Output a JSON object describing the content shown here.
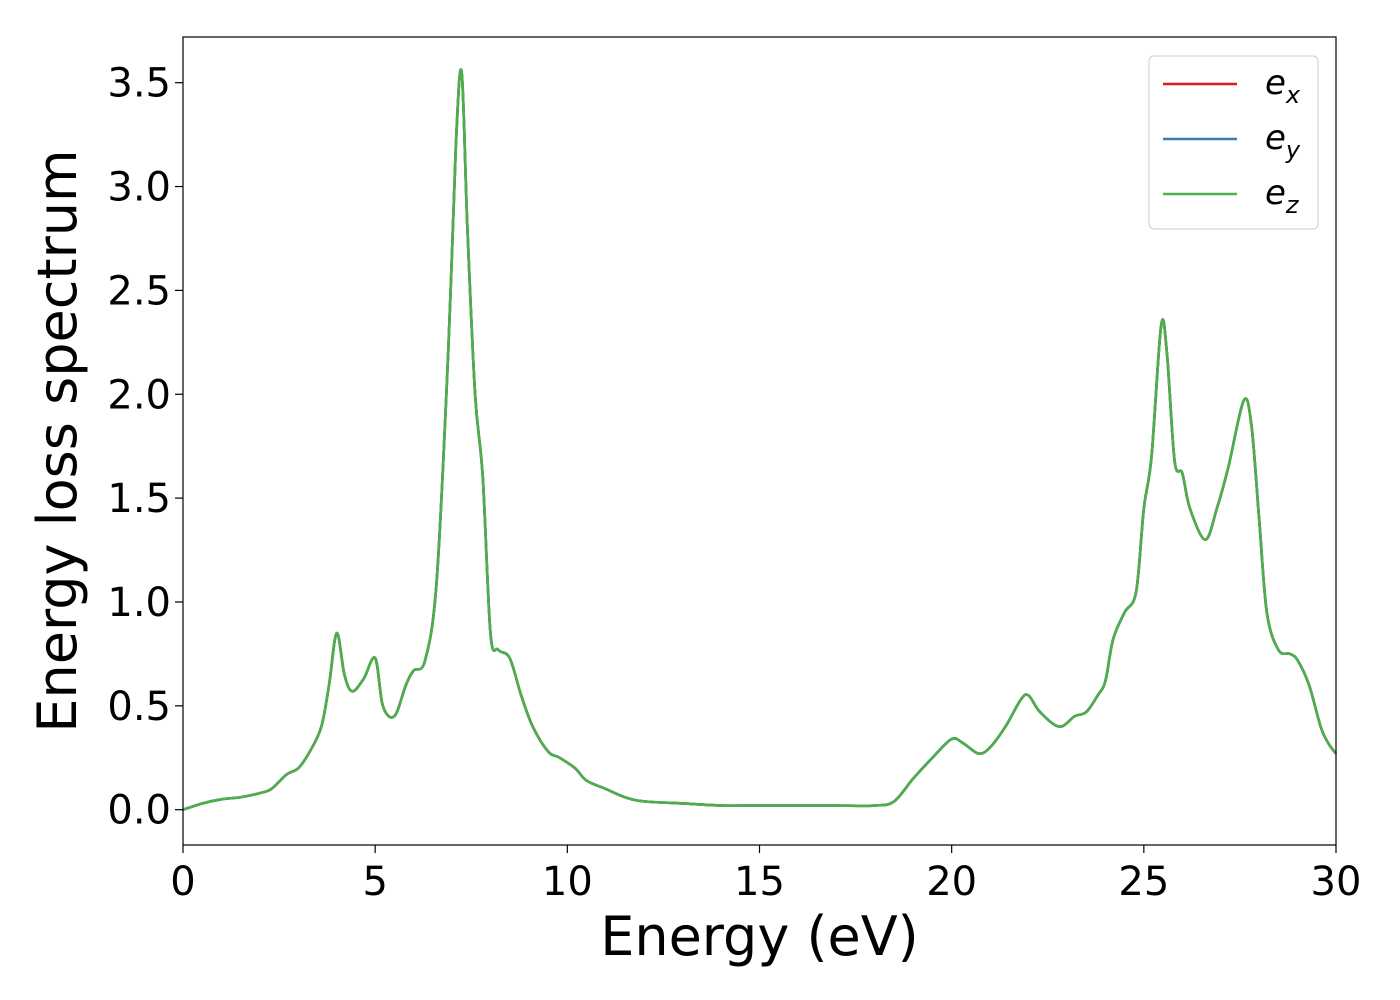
{
  "chart_data": {
    "type": "line",
    "xlabel": "Energy (eV)",
    "ylabel": "Energy loss spectrum",
    "xlim": [
      0,
      30
    ],
    "ylim": [
      -0.17,
      3.72
    ],
    "x_ticks": [
      0,
      5,
      10,
      15,
      20,
      25,
      30
    ],
    "x_tick_labels": [
      "0",
      "5",
      "10",
      "15",
      "20",
      "25",
      "30"
    ],
    "y_ticks": [
      0.0,
      0.5,
      1.0,
      1.5,
      2.0,
      2.5,
      3.0,
      3.5
    ],
    "y_tick_labels": [
      "0.0",
      "0.5",
      "1.0",
      "1.5",
      "2.0",
      "2.5",
      "3.0",
      "3.5"
    ],
    "grid": false,
    "legend_position": "top-right",
    "x": [
      0,
      0.5,
      1.0,
      1.5,
      2.0,
      2.3,
      2.7,
      3.0,
      3.3,
      3.6,
      3.8,
      4.0,
      4.2,
      4.4,
      4.7,
      5.0,
      5.2,
      5.5,
      5.8,
      6.0,
      6.3,
      6.6,
      6.9,
      7.1,
      7.25,
      7.4,
      7.6,
      7.8,
      8.0,
      8.2,
      8.5,
      8.8,
      9.1,
      9.5,
      9.8,
      10.2,
      10.5,
      11.0,
      11.5,
      12.0,
      13.0,
      14.0,
      15.0,
      16.0,
      17.0,
      18.0,
      18.5,
      19.0,
      19.5,
      20.0,
      20.3,
      20.7,
      21.0,
      21.4,
      21.8,
      22.0,
      22.3,
      22.8,
      23.2,
      23.5,
      23.8,
      24.0,
      24.2,
      24.5,
      24.8,
      25.0,
      25.2,
      25.45,
      25.6,
      25.8,
      26.0,
      26.2,
      26.6,
      26.9,
      27.2,
      27.6,
      27.8,
      28.0,
      28.2,
      28.5,
      28.8,
      29.0,
      29.3,
      29.6,
      29.8,
      30.0
    ],
    "series": [
      {
        "name": "e_x",
        "label_base": "e",
        "label_sub": "x",
        "color": "#e41a1c",
        "values": [
          0.0,
          0.03,
          0.05,
          0.06,
          0.08,
          0.1,
          0.17,
          0.2,
          0.28,
          0.4,
          0.6,
          0.85,
          0.65,
          0.57,
          0.63,
          0.73,
          0.5,
          0.45,
          0.6,
          0.67,
          0.72,
          1.1,
          2.2,
          3.2,
          3.55,
          2.8,
          2.0,
          1.6,
          0.85,
          0.77,
          0.73,
          0.55,
          0.4,
          0.28,
          0.25,
          0.2,
          0.14,
          0.1,
          0.06,
          0.04,
          0.03,
          0.02,
          0.02,
          0.02,
          0.02,
          0.02,
          0.04,
          0.15,
          0.25,
          0.34,
          0.32,
          0.27,
          0.3,
          0.4,
          0.53,
          0.55,
          0.47,
          0.4,
          0.45,
          0.47,
          0.55,
          0.62,
          0.82,
          0.95,
          1.05,
          1.45,
          1.7,
          2.33,
          2.2,
          1.68,
          1.62,
          1.45,
          1.3,
          1.45,
          1.65,
          1.97,
          1.85,
          1.4,
          0.95,
          0.77,
          0.75,
          0.72,
          0.6,
          0.4,
          0.32,
          0.27
        ]
      },
      {
        "name": "e_y",
        "label_base": "e",
        "label_sub": "y",
        "color": "#377eb8",
        "values": [
          0.0,
          0.03,
          0.05,
          0.06,
          0.08,
          0.1,
          0.17,
          0.2,
          0.28,
          0.4,
          0.6,
          0.85,
          0.65,
          0.57,
          0.63,
          0.73,
          0.5,
          0.45,
          0.6,
          0.67,
          0.72,
          1.1,
          2.2,
          3.2,
          3.55,
          2.8,
          2.0,
          1.6,
          0.85,
          0.77,
          0.73,
          0.55,
          0.4,
          0.28,
          0.25,
          0.2,
          0.14,
          0.1,
          0.06,
          0.04,
          0.03,
          0.02,
          0.02,
          0.02,
          0.02,
          0.02,
          0.04,
          0.15,
          0.25,
          0.34,
          0.32,
          0.27,
          0.3,
          0.4,
          0.53,
          0.55,
          0.47,
          0.4,
          0.45,
          0.47,
          0.55,
          0.62,
          0.82,
          0.95,
          1.05,
          1.45,
          1.7,
          2.33,
          2.2,
          1.68,
          1.62,
          1.45,
          1.3,
          1.45,
          1.65,
          1.97,
          1.85,
          1.4,
          0.95,
          0.77,
          0.75,
          0.72,
          0.6,
          0.4,
          0.32,
          0.27
        ]
      },
      {
        "name": "e_z",
        "label_base": "e",
        "label_sub": "z",
        "color": "#4daf4a",
        "values": [
          0.0,
          0.03,
          0.05,
          0.06,
          0.08,
          0.1,
          0.17,
          0.2,
          0.28,
          0.4,
          0.6,
          0.85,
          0.65,
          0.57,
          0.63,
          0.73,
          0.5,
          0.45,
          0.6,
          0.67,
          0.72,
          1.1,
          2.2,
          3.2,
          3.55,
          2.8,
          2.0,
          1.6,
          0.85,
          0.77,
          0.73,
          0.55,
          0.4,
          0.28,
          0.25,
          0.2,
          0.14,
          0.1,
          0.06,
          0.04,
          0.03,
          0.02,
          0.02,
          0.02,
          0.02,
          0.02,
          0.04,
          0.15,
          0.25,
          0.34,
          0.32,
          0.27,
          0.3,
          0.4,
          0.53,
          0.55,
          0.47,
          0.4,
          0.45,
          0.47,
          0.55,
          0.62,
          0.82,
          0.95,
          1.05,
          1.45,
          1.7,
          2.33,
          2.2,
          1.68,
          1.62,
          1.45,
          1.3,
          1.45,
          1.65,
          1.97,
          1.85,
          1.4,
          0.95,
          0.77,
          0.75,
          0.72,
          0.6,
          0.4,
          0.32,
          0.27
        ]
      }
    ]
  }
}
